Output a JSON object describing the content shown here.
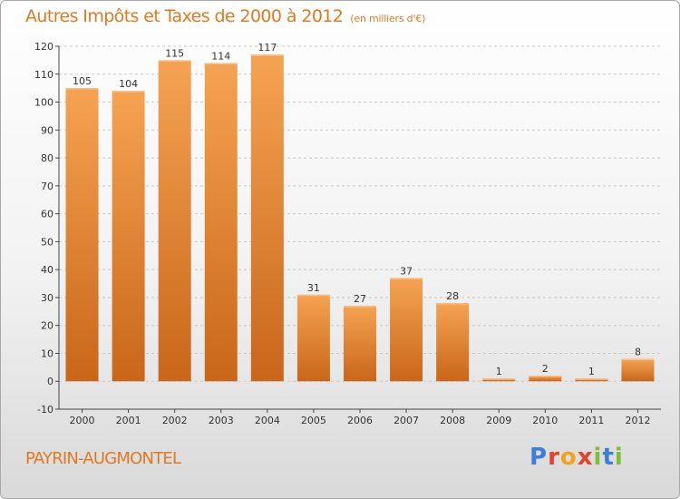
{
  "header": {
    "title": "Autres Impôts et Taxes de 2000 à 2012",
    "subtitle": "(en milliers d'€)"
  },
  "footer": {
    "commune": "PAYRIN-AUGMONTEL",
    "logo": "Proxiti"
  },
  "colors": {
    "accent": "#e07a22",
    "bar_light": "#f5a352",
    "bar_dark": "#c9661a",
    "logo_letters": [
      "#3d7fd6",
      "#e0442b",
      "#f2a21c",
      "#e0442b",
      "#7cbf3a",
      "#3d7fd6",
      "#7cbf3a"
    ]
  },
  "chart_data": {
    "type": "bar",
    "title": "Autres Impôts et Taxes de 2000 à 2012",
    "subtitle": "(en milliers d'€)",
    "categories": [
      "2000",
      "2001",
      "2002",
      "2003",
      "2004",
      "2005",
      "2006",
      "2007",
      "2008",
      "2009",
      "2010",
      "2011",
      "2012"
    ],
    "values": [
      105,
      104,
      115,
      114,
      117,
      31,
      27,
      37,
      28,
      1,
      2,
      1,
      8
    ],
    "data_labels": [
      "105",
      "104",
      "115",
      "114",
      "117",
      "31",
      "27",
      "37",
      "28",
      "1",
      "2",
      "1",
      "8"
    ],
    "ylim": [
      -10,
      120
    ],
    "yticks": [
      -10,
      0,
      10,
      20,
      30,
      40,
      50,
      60,
      70,
      80,
      90,
      100,
      110,
      120
    ],
    "ytick_labels": [
      "-10",
      "0",
      "10",
      "20",
      "30",
      "40",
      "50",
      "60",
      "70",
      "80",
      "90",
      "100",
      "110",
      "120"
    ],
    "grid": "horizontal dashed",
    "legend": "none"
  }
}
